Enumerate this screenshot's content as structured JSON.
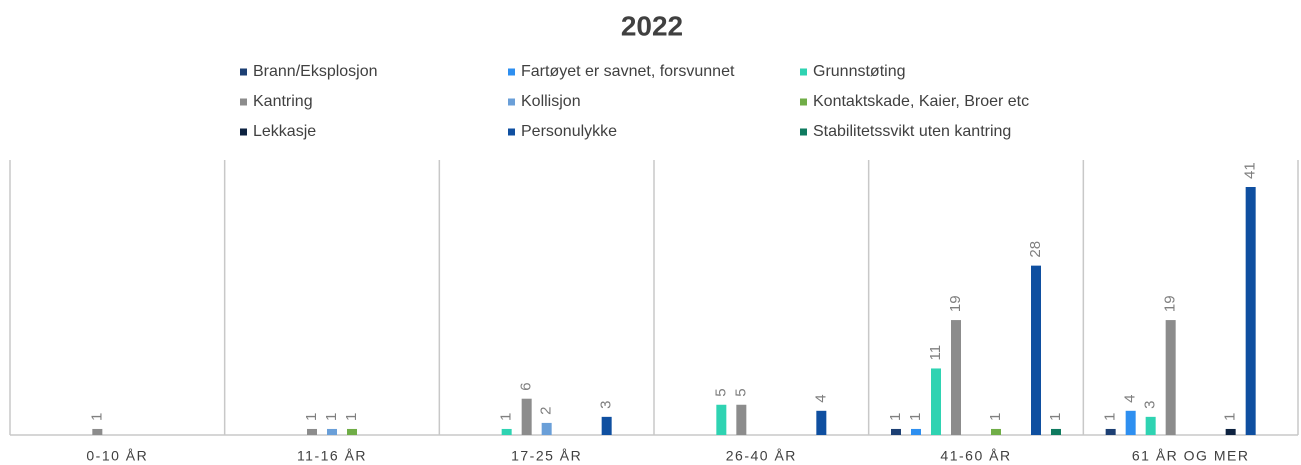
{
  "chart_data": {
    "type": "bar",
    "title": "2022",
    "categories": [
      "0-10 ÅR",
      "11-16 ÅR",
      "17-25 ÅR",
      "26-40 ÅR",
      "41-60 ÅR",
      "61 ÅR OG MER"
    ],
    "series": [
      {
        "name": "Brann/Eksplosjon",
        "color": "#1c3f73",
        "values": [
          null,
          null,
          null,
          null,
          1,
          1
        ]
      },
      {
        "name": "Fartøyet er savnet, forsvunnet",
        "color": "#2e8ff0",
        "values": [
          null,
          null,
          null,
          null,
          1,
          4
        ]
      },
      {
        "name": "Grunnstøting",
        "color": "#2fd3b2",
        "values": [
          null,
          null,
          1,
          5,
          11,
          3
        ]
      },
      {
        "name": "Kantring",
        "color": "#8c8c8c",
        "values": [
          1,
          1,
          6,
          5,
          19,
          19
        ]
      },
      {
        "name": "Kollisjon",
        "color": "#6a9fd8",
        "values": [
          null,
          1,
          2,
          null,
          null,
          null
        ]
      },
      {
        "name": "Kontaktskade, Kaier, Broer etc",
        "color": "#70ad47",
        "values": [
          null,
          1,
          null,
          null,
          1,
          null
        ]
      },
      {
        "name": "Lekkasje",
        "color": "#0d2240",
        "values": [
          null,
          null,
          null,
          null,
          null,
          1
        ]
      },
      {
        "name": "Personulykke",
        "color": "#0f4fa0",
        "values": [
          null,
          null,
          3,
          4,
          28,
          41
        ]
      },
      {
        "name": "Stabilitetssvikt uten kantring",
        "color": "#0f7a5f",
        "values": [
          null,
          null,
          null,
          null,
          1,
          null
        ]
      }
    ]
  }
}
